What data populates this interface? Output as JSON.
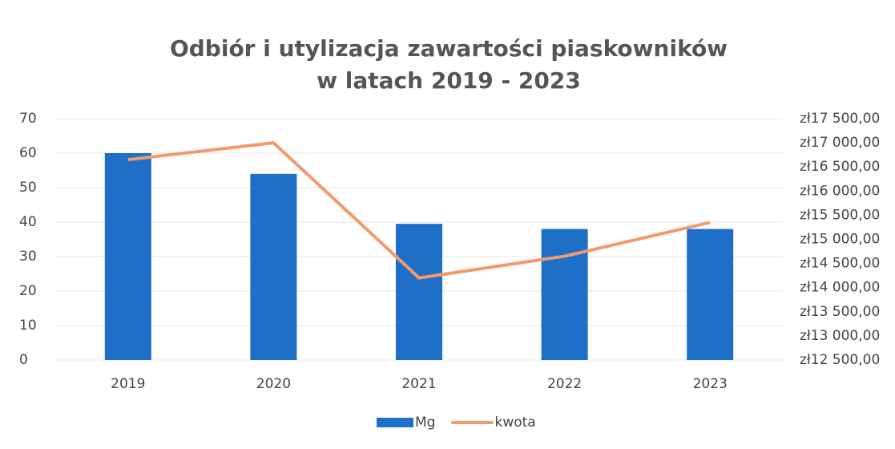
{
  "chart_data": {
    "type": "bar",
    "title": "Odbiór i utylizacja zawartości piaskowników",
    "subtitle": "w latach 2019 - 2023",
    "categories": [
      "2019",
      "2020",
      "2021",
      "2022",
      "2023"
    ],
    "series": [
      {
        "name": "Mg",
        "type": "bar",
        "color": "#1e6fc8",
        "values": [
          60,
          54,
          39.5,
          38,
          38
        ]
      },
      {
        "name": "kwota",
        "type": "line",
        "axis": "y2",
        "color": "#f29a6b",
        "values": [
          16650,
          17000,
          14200,
          14650,
          15350
        ]
      }
    ],
    "ylim": [
      0,
      70
    ],
    "yticks": [
      0,
      10,
      20,
      30,
      40,
      50,
      60,
      70
    ],
    "y2lim": [
      12500,
      17500
    ],
    "y2ticks": [
      {
        "value": 12500,
        "label": "zł12 500,00"
      },
      {
        "value": 13000,
        "label": "zł13 000,00"
      },
      {
        "value": 13500,
        "label": "zł13 500,00"
      },
      {
        "value": 14000,
        "label": "zł14 000,00"
      },
      {
        "value": 14500,
        "label": "zł14 500,00"
      },
      {
        "value": 15000,
        "label": "zł15 000,00"
      },
      {
        "value": 15500,
        "label": "zł15 500,00"
      },
      {
        "value": 16000,
        "label": "zł16 000,00"
      },
      {
        "value": 16500,
        "label": "zł16 500,00"
      },
      {
        "value": 17000,
        "label": "zł17 000,00"
      },
      {
        "value": 17500,
        "label": "zł17 500,00"
      }
    ],
    "grid": true,
    "legend": "bottom"
  }
}
